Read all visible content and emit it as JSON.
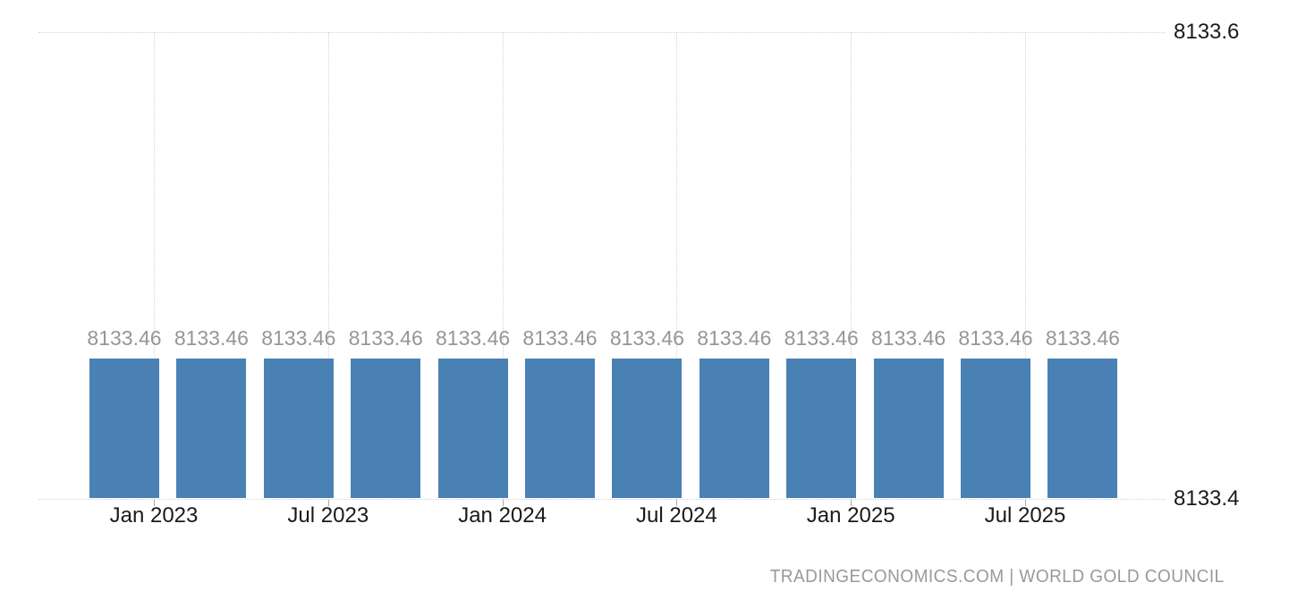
{
  "chart_data": {
    "type": "bar",
    "title": "",
    "values": [
      8133.46,
      8133.46,
      8133.46,
      8133.46,
      8133.46,
      8133.46,
      8133.46,
      8133.46,
      8133.46,
      8133.46,
      8133.46,
      8133.46
    ],
    "data_labels": [
      "8133.46",
      "8133.46",
      "8133.46",
      "8133.46",
      "8133.46",
      "8133.46",
      "8133.46",
      "8133.46",
      "8133.46",
      "8133.46",
      "8133.46",
      "8133.46"
    ],
    "x_tick_labels": [
      "Jan 2023",
      "Jul 2023",
      "Jan 2024",
      "Jul 2024",
      "Jan 2025",
      "Jul 2025"
    ],
    "y_ticks": [
      {
        "value": 8133.6,
        "label": "8133.6"
      },
      {
        "value": 8133.4,
        "label": "8133.4"
      }
    ],
    "ylim": [
      8133.4,
      8133.6
    ],
    "grid": "dotted",
    "legend": "none",
    "colors": {
      "bar": "#4a81b4",
      "data_label": "#969696",
      "axis_label": "#1a1a1a",
      "gridline": "#d4d4d4",
      "tick": "#aaaaaa",
      "background": "#ffffff"
    }
  },
  "footer": {
    "attribution": "TRADINGECONOMICS.COM | WORLD GOLD COUNCIL",
    "color": "#999999"
  }
}
